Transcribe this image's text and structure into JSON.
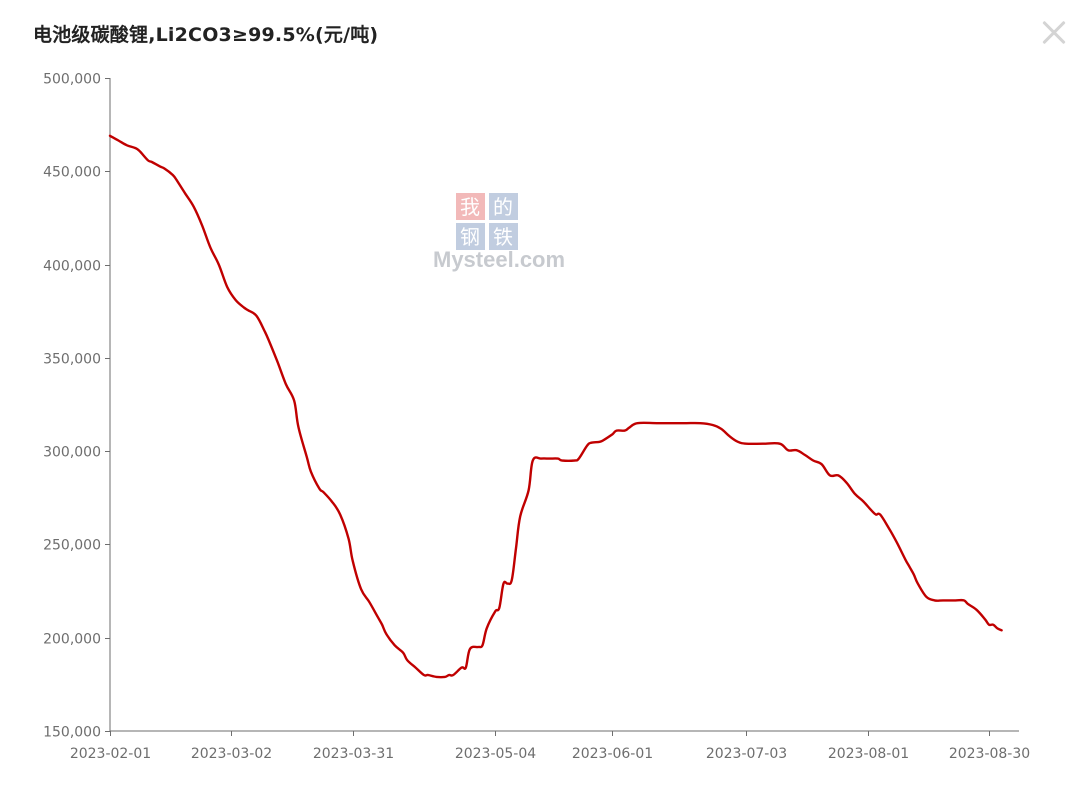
{
  "header": {
    "title": "电池级碳酸锂,Li2CO3≥99.5%(元/吨)"
  },
  "watermark": {
    "chars": [
      "我",
      "的",
      "钢",
      "铁"
    ],
    "text": "Mysteel.com"
  },
  "colors": {
    "line": "#c00000",
    "axis": "#6e6e6e",
    "text": "#6e6e6e"
  },
  "chart_data": {
    "type": "line",
    "title": "电池级碳酸锂,Li2CO3≥99.5%(元/吨)",
    "xlabel": "",
    "ylabel": "",
    "ylim": [
      150000,
      500000
    ],
    "xlim": [
      "2023-02-01",
      "2023-09-01"
    ],
    "grid": false,
    "legend": "none",
    "y_ticks": [
      "150,000",
      "200,000",
      "250,000",
      "300,000",
      "350,000",
      "400,000",
      "450,000",
      "500,000"
    ],
    "y_tick_values": [
      150000,
      200000,
      250000,
      300000,
      350000,
      400000,
      450000,
      500000
    ],
    "x_ticks": [
      "2023-02-01",
      "2023-03-02",
      "2023-03-31",
      "2023-05-04",
      "2023-06-01",
      "2023-07-03",
      "2023-08-01",
      "2023-08-30"
    ],
    "series": [
      {
        "name": "",
        "points": [
          [
            "2023-02-01",
            469000
          ],
          [
            "2023-02-03",
            466500
          ],
          [
            "2023-02-05",
            464000
          ],
          [
            "2023-02-07",
            462500
          ],
          [
            "2023-02-08",
            461000
          ],
          [
            "2023-02-10",
            456000
          ],
          [
            "2023-02-11",
            455000
          ],
          [
            "2023-02-13",
            452500
          ],
          [
            "2023-02-14",
            451500
          ],
          [
            "2023-02-16",
            448000
          ],
          [
            "2023-02-17",
            445000
          ],
          [
            "2023-02-19",
            438000
          ],
          [
            "2023-02-21",
            431000
          ],
          [
            "2023-02-23",
            421000
          ],
          [
            "2023-02-25",
            409000
          ],
          [
            "2023-02-27",
            400000
          ],
          [
            "2023-03-01",
            388000
          ],
          [
            "2023-03-03",
            381000
          ],
          [
            "2023-03-05",
            377000
          ],
          [
            "2023-03-06",
            375500
          ],
          [
            "2023-03-08",
            372500
          ],
          [
            "2023-03-10",
            364000
          ],
          [
            "2023-03-11",
            359000
          ],
          [
            "2023-03-13",
            348000
          ],
          [
            "2023-03-15",
            336000
          ],
          [
            "2023-03-17",
            327000
          ],
          [
            "2023-03-18",
            313000
          ],
          [
            "2023-03-20",
            297000
          ],
          [
            "2023-03-21",
            289000
          ],
          [
            "2023-03-23",
            280000
          ],
          [
            "2023-03-24",
            278000
          ],
          [
            "2023-03-26",
            273000
          ],
          [
            "2023-03-28",
            266000
          ],
          [
            "2023-03-30",
            253000
          ],
          [
            "2023-03-31",
            241000
          ],
          [
            "2023-04-02",
            226000
          ],
          [
            "2023-04-04",
            219000
          ],
          [
            "2023-04-06",
            211000
          ],
          [
            "2023-04-07",
            207000
          ],
          [
            "2023-04-08",
            202000
          ],
          [
            "2023-04-10",
            196000
          ],
          [
            "2023-04-12",
            192000
          ],
          [
            "2023-04-13",
            188000
          ],
          [
            "2023-04-15",
            184000
          ],
          [
            "2023-04-17",
            180000
          ],
          [
            "2023-04-18",
            180000
          ],
          [
            "2023-04-20",
            179000
          ],
          [
            "2023-04-22",
            179000
          ],
          [
            "2023-04-23",
            180000
          ],
          [
            "2023-04-24",
            180000
          ],
          [
            "2023-04-26",
            184000
          ],
          [
            "2023-04-27",
            184000
          ],
          [
            "2023-04-28",
            194000
          ],
          [
            "2023-04-30",
            195000
          ],
          [
            "2023-05-01",
            196000
          ],
          [
            "2023-05-02",
            205000
          ],
          [
            "2023-05-04",
            214000
          ],
          [
            "2023-05-05",
            216000
          ],
          [
            "2023-05-06",
            229000
          ],
          [
            "2023-05-07",
            229000
          ],
          [
            "2023-05-08",
            231000
          ],
          [
            "2023-05-09",
            248000
          ],
          [
            "2023-05-10",
            265000
          ],
          [
            "2023-05-12",
            279000
          ],
          [
            "2023-05-13",
            295000
          ],
          [
            "2023-05-15",
            296000
          ],
          [
            "2023-05-17",
            296000
          ],
          [
            "2023-05-19",
            296000
          ],
          [
            "2023-05-20",
            295000
          ],
          [
            "2023-05-23",
            295000
          ],
          [
            "2023-05-24",
            296000
          ],
          [
            "2023-05-26",
            303000
          ],
          [
            "2023-05-27",
            304500
          ],
          [
            "2023-05-29",
            305000
          ],
          [
            "2023-05-30",
            306000
          ],
          [
            "2023-06-01",
            309000
          ],
          [
            "2023-06-02",
            311000
          ],
          [
            "2023-06-04",
            311000
          ],
          [
            "2023-06-05",
            312500
          ],
          [
            "2023-06-07",
            315000
          ],
          [
            "2023-06-12",
            315000
          ],
          [
            "2023-06-18",
            315000
          ],
          [
            "2023-06-22",
            315000
          ],
          [
            "2023-06-25",
            314000
          ],
          [
            "2023-06-27",
            312000
          ],
          [
            "2023-06-29",
            308000
          ],
          [
            "2023-07-01",
            305000
          ],
          [
            "2023-07-03",
            304000
          ],
          [
            "2023-07-07",
            304000
          ],
          [
            "2023-07-11",
            304000
          ],
          [
            "2023-07-13",
            300500
          ],
          [
            "2023-07-15",
            300500
          ],
          [
            "2023-07-17",
            298000
          ],
          [
            "2023-07-19",
            295000
          ],
          [
            "2023-07-21",
            293000
          ],
          [
            "2023-07-23",
            287000
          ],
          [
            "2023-07-25",
            287000
          ],
          [
            "2023-07-27",
            283000
          ],
          [
            "2023-07-29",
            277000
          ],
          [
            "2023-07-31",
            273000
          ],
          [
            "2023-08-02",
            268000
          ],
          [
            "2023-08-03",
            266000
          ],
          [
            "2023-08-04",
            266000
          ],
          [
            "2023-08-06",
            259000
          ],
          [
            "2023-08-08",
            251000
          ],
          [
            "2023-08-10",
            242000
          ],
          [
            "2023-08-11",
            238000
          ],
          [
            "2023-08-12",
            234000
          ],
          [
            "2023-08-13",
            229000
          ],
          [
            "2023-08-15",
            222000
          ],
          [
            "2023-08-17",
            220000
          ],
          [
            "2023-08-19",
            220000
          ],
          [
            "2023-08-22",
            220000
          ],
          [
            "2023-08-24",
            220000
          ],
          [
            "2023-08-25",
            218000
          ],
          [
            "2023-08-27",
            215000
          ],
          [
            "2023-08-29",
            210000
          ],
          [
            "2023-08-30",
            207000
          ],
          [
            "2023-08-31",
            207000
          ],
          [
            "2023-09-01",
            205000
          ],
          [
            "2023-09-02",
            204000
          ]
        ]
      }
    ]
  }
}
